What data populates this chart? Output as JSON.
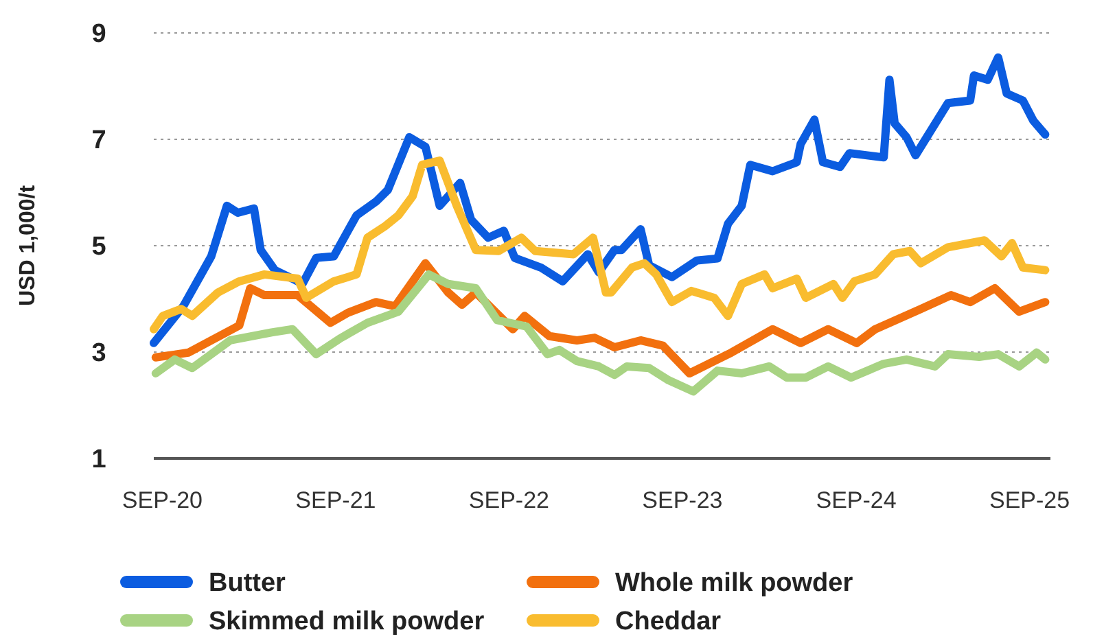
{
  "chart_data": {
    "type": "line",
    "ylabel": "USD 1,000/t",
    "xlim": [
      "2020-08-14",
      "2025-10-15"
    ],
    "ylim": [
      1,
      9
    ],
    "yticks": [
      1,
      3,
      5,
      7,
      9
    ],
    "xticks": [
      {
        "value": "2020-09-01",
        "label": "SEP-20"
      },
      {
        "value": "2021-09-01",
        "label": "SEP-21"
      },
      {
        "value": "2022-09-01",
        "label": "SEP-22"
      },
      {
        "value": "2023-09-01",
        "label": "SEP-23"
      },
      {
        "value": "2024-09-01",
        "label": "SEP-24"
      },
      {
        "value": "2025-09-01",
        "label": "SEP-25"
      }
    ],
    "grid": "y",
    "legend": "bottom",
    "line_style": "solid",
    "marker": "none",
    "series": [
      {
        "name": "Butter",
        "color": "#0b5ce0",
        "x": [
          "2020-08-14",
          "2020-10-15",
          "2020-12-13",
          "2021-01-15",
          "2021-02-07",
          "2021-03-13",
          "2021-03-27",
          "2021-04-26",
          "2021-06-02",
          "2021-06-23",
          "2021-07-22",
          "2021-08-28",
          "2021-10-15",
          "2021-11-25",
          "2021-12-20",
          "2022-02-03",
          "2022-03-09",
          "2022-04-08",
          "2022-05-21",
          "2022-06-13",
          "2022-07-19",
          "2022-08-21",
          "2022-09-13",
          "2022-11-07",
          "2022-12-23",
          "2023-02-14",
          "2023-03-09",
          "2023-04-11",
          "2023-04-26",
          "2023-06-05",
          "2023-06-23",
          "2023-08-10",
          "2023-10-01",
          "2023-11-14",
          "2023-12-06",
          "2024-01-04",
          "2024-01-22",
          "2024-03-09",
          "2024-04-29",
          "2024-05-07",
          "2024-06-05",
          "2024-06-23",
          "2024-07-29",
          "2024-08-18",
          "2024-10-29",
          "2024-11-10",
          "2024-11-21",
          "2024-12-16",
          "2025-01-04",
          "2025-03-13",
          "2025-04-29",
          "2025-05-07",
          "2025-06-05",
          "2025-06-27",
          "2025-07-15",
          "2025-08-18",
          "2025-09-09",
          "2025-10-04"
        ],
        "values": [
          3.17,
          3.86,
          4.8,
          5.75,
          5.62,
          5.7,
          4.92,
          4.54,
          4.38,
          4.28,
          4.77,
          4.8,
          5.57,
          5.83,
          6.05,
          7.04,
          6.86,
          5.75,
          6.18,
          5.49,
          5.15,
          5.28,
          4.77,
          4.59,
          4.33,
          4.84,
          4.5,
          4.92,
          4.92,
          5.31,
          4.63,
          4.41,
          4.72,
          4.76,
          5.41,
          5.75,
          6.52,
          6.4,
          6.57,
          6.91,
          7.37,
          6.57,
          6.48,
          6.74,
          6.66,
          8.12,
          7.3,
          7.04,
          6.7,
          7.68,
          7.73,
          8.2,
          8.12,
          8.54,
          7.86,
          7.73,
          7.35,
          7.09
        ]
      },
      {
        "name": "Whole milk powder",
        "color": "#f2700e",
        "x": [
          "2020-08-18",
          "2020-10-26",
          "2020-12-13",
          "2021-02-10",
          "2021-03-05",
          "2021-04-04",
          "2021-06-13",
          "2021-08-21",
          "2021-09-27",
          "2021-11-25",
          "2022-01-04",
          "2022-03-09",
          "2022-04-26",
          "2022-05-25",
          "2022-06-23",
          "2022-09-09",
          "2022-10-04",
          "2022-11-25",
          "2023-01-22",
          "2023-02-28",
          "2023-04-11",
          "2023-06-05",
          "2023-07-22",
          "2023-09-16",
          "2023-11-07",
          "2023-12-13",
          "2024-03-09",
          "2024-05-07",
          "2024-07-04",
          "2024-09-02",
          "2024-10-11",
          "2025-01-15",
          "2025-03-20",
          "2025-04-29",
          "2025-06-20",
          "2025-08-10",
          "2025-10-04"
        ],
        "values": [
          2.9,
          2.99,
          3.22,
          3.5,
          4.2,
          4.07,
          4.07,
          3.55,
          3.74,
          3.94,
          3.86,
          4.67,
          4.12,
          3.89,
          4.12,
          3.43,
          3.68,
          3.3,
          3.22,
          3.27,
          3.09,
          3.22,
          3.12,
          2.6,
          2.83,
          2.99,
          3.43,
          3.17,
          3.43,
          3.17,
          3.43,
          3.81,
          4.07,
          3.94,
          4.2,
          3.76,
          3.94
        ]
      },
      {
        "name": "Skimmed milk powder",
        "color": "#a8d383",
        "x": [
          "2020-08-18",
          "2020-09-27",
          "2020-11-03",
          "2021-01-22",
          "2021-04-19",
          "2021-06-02",
          "2021-07-22",
          "2021-09-09",
          "2021-11-07",
          "2022-01-11",
          "2022-03-16",
          "2022-04-26",
          "2022-06-23",
          "2022-08-07",
          "2022-10-08",
          "2022-11-21",
          "2022-12-16",
          "2023-01-22",
          "2023-03-09",
          "2023-04-11",
          "2023-05-07",
          "2023-06-23",
          "2023-08-03",
          "2023-09-24",
          "2023-11-14",
          "2024-01-04",
          "2024-03-02",
          "2024-04-08",
          "2024-05-18",
          "2024-07-04",
          "2024-08-21",
          "2024-10-29",
          "2024-12-16",
          "2025-02-14",
          "2025-03-13",
          "2025-05-18",
          "2025-06-27",
          "2025-08-10",
          "2025-09-16",
          "2025-10-04"
        ],
        "values": [
          2.6,
          2.86,
          2.7,
          3.22,
          3.37,
          3.43,
          2.96,
          3.25,
          3.55,
          3.76,
          4.46,
          4.28,
          4.2,
          3.6,
          3.48,
          2.96,
          3.04,
          2.83,
          2.73,
          2.57,
          2.73,
          2.7,
          2.47,
          2.26,
          2.65,
          2.6,
          2.73,
          2.52,
          2.52,
          2.73,
          2.52,
          2.78,
          2.86,
          2.73,
          2.96,
          2.91,
          2.96,
          2.73,
          2.99,
          2.86
        ]
      },
      {
        "name": "Cheddar",
        "color": "#f9bc2f",
        "x": [
          "2020-08-14",
          "2020-09-02",
          "2020-10-11",
          "2020-11-03",
          "2020-12-27",
          "2021-02-10",
          "2021-04-04",
          "2021-06-13",
          "2021-07-01",
          "2021-08-28",
          "2021-10-15",
          "2021-11-07",
          "2021-12-13",
          "2022-01-11",
          "2022-02-10",
          "2022-03-02",
          "2022-04-08",
          "2022-05-14",
          "2022-06-23",
          "2022-08-10",
          "2022-09-27",
          "2022-10-26",
          "2023-01-15",
          "2023-02-25",
          "2023-03-24",
          "2023-04-04",
          "2023-05-18",
          "2023-06-13",
          "2023-07-08",
          "2023-08-10",
          "2023-09-20",
          "2023-11-07",
          "2023-12-06",
          "2024-01-04",
          "2024-02-21",
          "2024-03-09",
          "2024-04-29",
          "2024-05-18",
          "2024-07-15",
          "2024-08-03",
          "2024-08-28",
          "2024-10-11",
          "2024-11-18",
          "2024-12-23",
          "2025-01-15",
          "2025-03-13",
          "2025-05-29",
          "2025-07-04",
          "2025-07-26",
          "2025-08-18",
          "2025-10-04"
        ],
        "values": [
          3.43,
          3.68,
          3.81,
          3.68,
          4.12,
          4.33,
          4.46,
          4.38,
          4.02,
          4.33,
          4.46,
          5.15,
          5.36,
          5.57,
          5.93,
          6.52,
          6.6,
          5.75,
          4.92,
          4.9,
          5.15,
          4.9,
          4.84,
          5.15,
          4.12,
          4.12,
          4.59,
          4.67,
          4.46,
          3.94,
          4.15,
          4.02,
          3.68,
          4.28,
          4.46,
          4.2,
          4.38,
          4.02,
          4.28,
          4.02,
          4.33,
          4.46,
          4.84,
          4.9,
          4.67,
          4.97,
          5.1,
          4.8,
          5.05,
          4.59,
          4.54
        ]
      }
    ]
  }
}
